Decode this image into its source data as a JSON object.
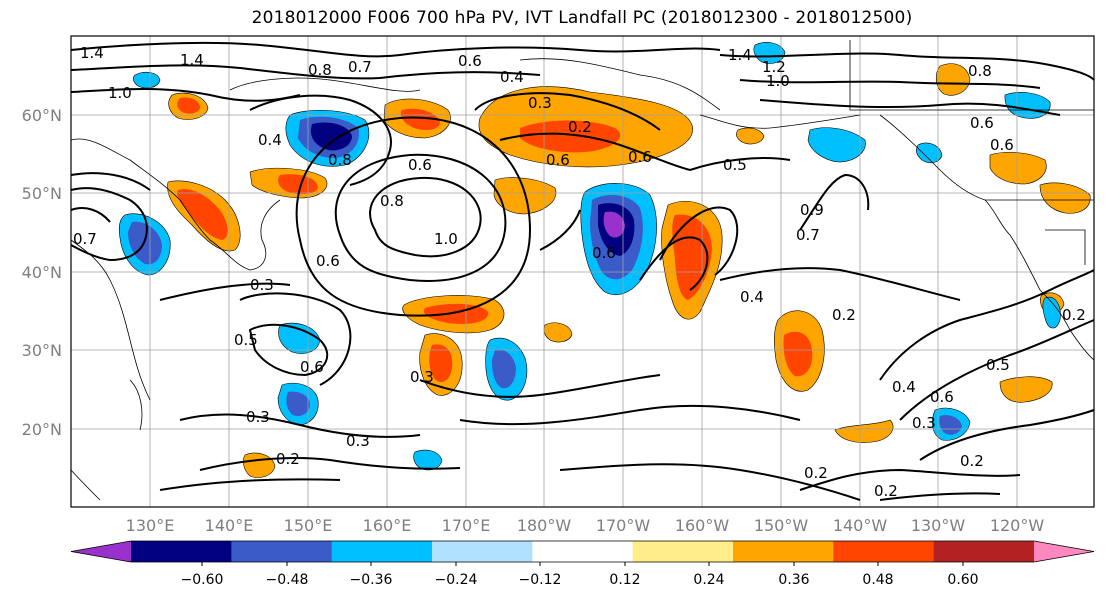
{
  "title": "2018012000 F006 700 hPa PV, IVT Landfall PC (2018012300 - 2018012500)",
  "map": {
    "lat_labels": [
      "60°N",
      "50°N",
      "40°N",
      "30°N",
      "20°N"
    ],
    "lon_labels": [
      "130°E",
      "140°E",
      "150°E",
      "160°E",
      "170°E",
      "180°W",
      "170°W",
      "160°W",
      "150°W",
      "140°W",
      "130°W",
      "120°W"
    ],
    "contour_labels": [
      "1.4",
      "1.4",
      "1.0",
      "0.8",
      "0.7",
      "0.6",
      "0.4",
      "0.3",
      "0.2",
      "0.6",
      "1.4",
      "1.2",
      "1.0",
      "0.8",
      "0.6",
      "0.4",
      "0.8",
      "0.6",
      "1.0",
      "0.8",
      "0.7",
      "0.6",
      "0.6",
      "0.6",
      "0.5",
      "0.3",
      "0.9",
      "0.7",
      "0.6",
      "0.4",
      "0.3",
      "0.5",
      "0.6",
      "0.2",
      "0.3",
      "0.2",
      "0.3",
      "0.2",
      "0.2",
      "0.4",
      "0.6",
      "0.5",
      "0.3",
      "0.2",
      "0.2"
    ]
  },
  "colorbar": {
    "tick_labels": [
      "−0.60",
      "−0.48",
      "−0.36",
      "−0.24",
      "−0.12",
      "0.12",
      "0.24",
      "0.36",
      "0.48",
      "0.60"
    ],
    "colors": [
      "#9932cc",
      "#000080",
      "#3a5bc8",
      "#00bfff",
      "#b0e2ff",
      "#ffffff",
      "#ffee8a",
      "#ffa500",
      "#ff4500",
      "#b22222",
      "#ff88c0"
    ]
  },
  "chart_data": {
    "type": "heatmap",
    "title": "2018012000 F006 700 hPa PV, IVT Landfall PC (2018012300 - 2018012500)",
    "projection": "cylindrical",
    "lon_range": [
      "121°E",
      "110°W"
    ],
    "lat_range": [
      "10°N",
      "70°N"
    ],
    "contour_values_labeled": [
      1.4,
      1.2,
      1.0,
      0.9,
      0.8,
      0.7,
      0.6,
      0.5,
      0.4,
      0.3,
      0.2
    ],
    "shading_levels": [
      -0.6,
      -0.48,
      -0.36,
      -0.24,
      -0.12,
      0.12,
      0.24,
      0.36,
      0.48,
      0.6
    ],
    "grid": true,
    "colorbar_position": "bottom"
  }
}
